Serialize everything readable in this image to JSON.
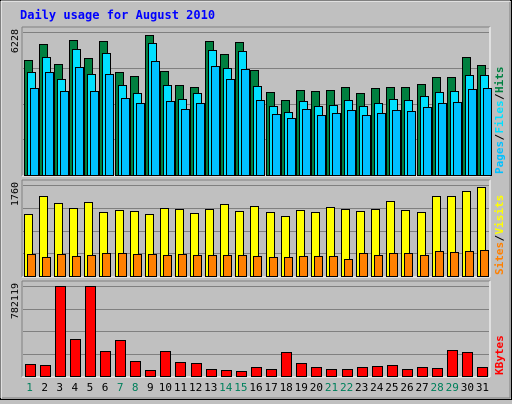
{
  "chart_data": {
    "type": "bar",
    "title": "Daily usage for August 2010",
    "categories": [
      "1",
      "2",
      "3",
      "4",
      "5",
      "6",
      "7",
      "8",
      "9",
      "10",
      "11",
      "12",
      "13",
      "14",
      "15",
      "16",
      "17",
      "18",
      "19",
      "20",
      "21",
      "22",
      "23",
      "24",
      "25",
      "26",
      "27",
      "28",
      "29",
      "30",
      "31"
    ],
    "weekend_days": [
      "1",
      "7",
      "8",
      "14",
      "15",
      "21",
      "22",
      "28",
      "29"
    ],
    "colors": {
      "title": "#0000ff",
      "hits": "#008040",
      "files": "#00e0ff",
      "pages": "#00c0ff",
      "visits": "#ffff00",
      "sites": "#ff8000",
      "kbytes": "#ff0000",
      "weekday_label": "#000000",
      "weekend_label": "#00805c",
      "plot_bg": "#c0c0c0",
      "grid": "#808080"
    },
    "panels": [
      {
        "name": "hits-files-pages",
        "axis_max_label": "6228",
        "ymax": 6228,
        "legend": [
          {
            "label": "Pages",
            "color_key": "pages"
          },
          {
            "label": "Files",
            "color_key": "files"
          },
          {
            "label": "Hits",
            "color_key": "hits"
          }
        ],
        "series": [
          {
            "name": "Hits",
            "color_key": "hits",
            "values": [
              5030,
              5720,
              4820,
              5880,
              5110,
              5840,
              4480,
              4300,
              6080,
              4530,
              3930,
              3850,
              5850,
              5280,
              5790,
              4580,
              3600,
              3260,
              3700,
              3660,
              3690,
              3830,
              3560,
              3810,
              3820,
              3830,
              3970,
              4250,
              4250,
              5160,
              4810
            ]
          },
          {
            "name": "Files",
            "color_key": "files",
            "values": [
              4470,
              5150,
              4200,
              5480,
              4400,
              5310,
              3920,
              3560,
              5730,
              3930,
              3320,
              3560,
              5430,
              4670,
              5400,
              3880,
              2990,
              2750,
              3210,
              3000,
              3070,
              3280,
              3020,
              3120,
              3320,
              3280,
              3440,
              3610,
              3640,
              4360,
              4350
            ]
          },
          {
            "name": "Pages",
            "color_key": "pages",
            "values": [
              3790,
              4500,
              3650,
              4710,
              3650,
              4380,
              3350,
              3150,
              4970,
              3230,
              2860,
              3120,
              4730,
              4160,
              4600,
              3260,
              2650,
              2500,
              2880,
              2620,
              2680,
              2830,
              2600,
              2710,
              2850,
              2780,
              2980,
              3130,
              3200,
              3730,
              3780
            ]
          }
        ]
      },
      {
        "name": "visits-sites",
        "axis_max_label": "1760",
        "ymax": 1760,
        "legend": [
          {
            "label": "Sites",
            "color_key": "sites"
          },
          {
            "label": "Visits",
            "color_key": "visits"
          }
        ],
        "series": [
          {
            "name": "Visits",
            "color_key": "visits",
            "values": [
              1190,
              1540,
              1420,
              1320,
              1440,
              1230,
              1270,
              1260,
              1200,
              1310,
              1290,
              1220,
              1300,
              1390,
              1260,
              1350,
              1230,
              1170,
              1270,
              1230,
              1330,
              1300,
              1260,
              1290,
              1460,
              1280,
              1230,
              1550,
              1550,
              1640,
              1720
            ]
          },
          {
            "name": "Sites",
            "color_key": "sites",
            "values": [
              420,
              360,
              430,
              390,
              400,
              440,
              440,
              430,
              420,
              410,
              420,
              400,
              410,
              400,
              400,
              380,
              370,
              360,
              380,
              380,
              380,
              330,
              440,
              410,
              450,
              440,
              400,
              480,
              460,
              480,
              510
            ]
          }
        ]
      },
      {
        "name": "kbytes",
        "axis_max_label": "782119",
        "ymax": 782119,
        "legend": [
          {
            "label": "KBytes",
            "color_key": "kbytes"
          }
        ],
        "series": [
          {
            "name": "KBytes",
            "color_key": "kbytes",
            "values": [
              104000,
              95000,
              782119,
              324000,
              782119,
              220000,
              317000,
              132000,
              55000,
              217000,
              118000,
              112000,
              57000,
              55000,
              47000,
              78000,
              59000,
              211000,
              115000,
              81000,
              60000,
              58000,
              81000,
              85000,
              95000,
              59000,
              77000,
              69000,
              230000,
              207000,
              81000
            ]
          }
        ]
      }
    ]
  }
}
